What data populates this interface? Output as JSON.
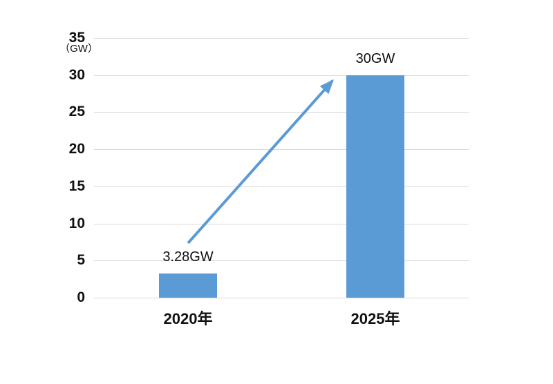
{
  "chart_data": {
    "type": "bar",
    "title": "",
    "categories": [
      "2020年",
      "2025年"
    ],
    "values": [
      3.28,
      30
    ],
    "bar_labels": [
      "3.28GW",
      "30GW"
    ],
    "unit_label": "（GW）",
    "ylabel": "GW",
    "xlabel": "",
    "y_ticks": [
      0,
      5,
      10,
      15,
      20,
      25,
      30,
      35
    ],
    "y_tick_labels": [
      "0",
      "5",
      "10",
      "15",
      "20",
      "25",
      "30",
      "35"
    ],
    "ylim": [
      0,
      35
    ],
    "grid": true,
    "legend": false,
    "annotation": {
      "type": "growth-arrow",
      "from_category": "2020年",
      "to_category": "2025年"
    },
    "colors": {
      "bar": "#5b9bd5",
      "arrow": "#5b9bd5",
      "gridline": "#d9d9d9",
      "text": "#111111",
      "background": "#ffffff"
    }
  }
}
